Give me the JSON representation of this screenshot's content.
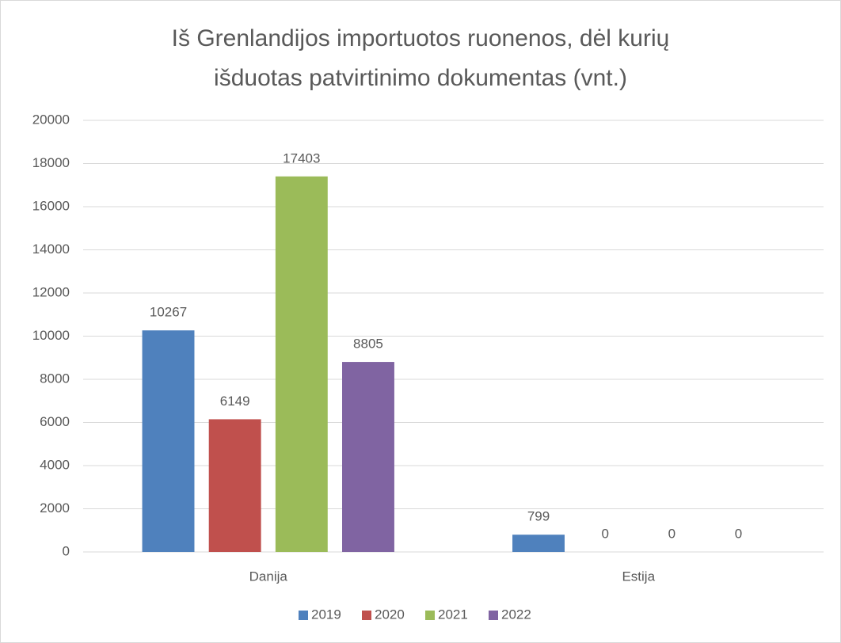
{
  "chart_data": {
    "type": "bar",
    "title": [
      "Iš Grenlandijos importuotos ruonenos, dėl kurių",
      "išduotas patvirtinimo dokumentas (vnt.)"
    ],
    "categories": [
      "Danija",
      "Estija"
    ],
    "series": [
      {
        "name": "2019",
        "color": "#4f81bd",
        "values": [
          10267,
          799
        ]
      },
      {
        "name": "2020",
        "color": "#c0504d",
        "values": [
          6149,
          0
        ]
      },
      {
        "name": "2021",
        "color": "#9bbb59",
        "values": [
          17403,
          0
        ]
      },
      {
        "name": "2022",
        "color": "#8064a2",
        "values": [
          8805,
          0
        ]
      }
    ],
    "ylim": [
      0,
      20000
    ],
    "yticks": [
      0,
      2000,
      4000,
      6000,
      8000,
      10000,
      12000,
      14000,
      16000,
      18000,
      20000
    ],
    "grid": true,
    "legend": "bottom"
  }
}
